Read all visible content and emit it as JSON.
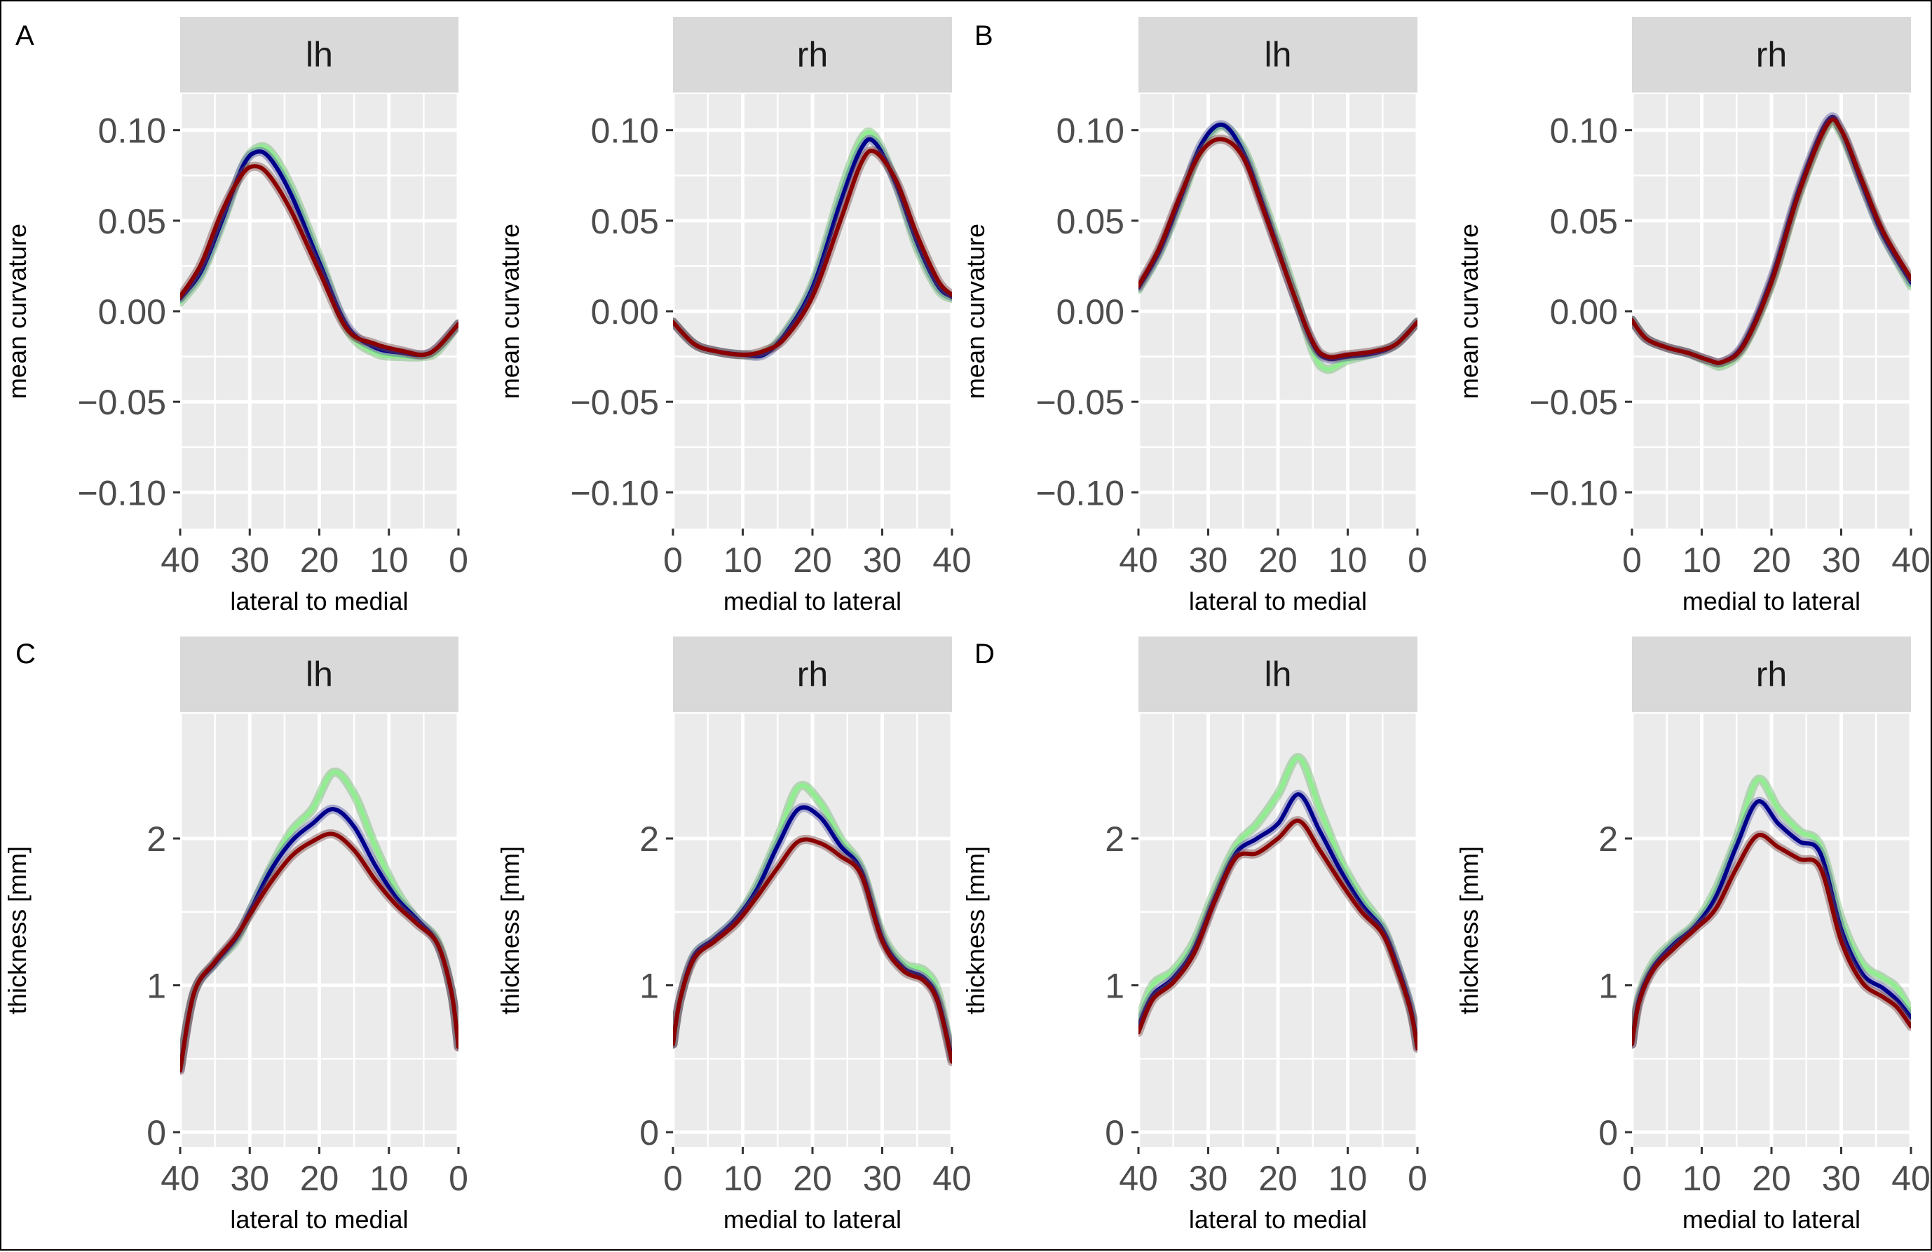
{
  "figure": {
    "panel_letters": [
      "A",
      "B",
      "C",
      "D"
    ]
  },
  "colors": {
    "panel_bg": "#ebebeb",
    "strip_bg": "#d9d9d9",
    "grid": "#ffffff",
    "green": "#90ee90",
    "blue": "#00008b",
    "red": "#8b0000"
  },
  "chart_data": [
    {
      "panel": "A",
      "type": "line",
      "strip": "lh",
      "xlabel": "lateral to medial",
      "ylabel": "mean curvature",
      "xlim": [
        40,
        0
      ],
      "x_ticks": [
        40,
        30,
        20,
        10,
        0
      ],
      "x_tick_labels": [
        "40",
        "30",
        "20",
        "10",
        "0"
      ],
      "ylim": [
        -0.12,
        0.12
      ],
      "y_ticks": [
        -0.1,
        -0.05,
        0,
        0.05,
        0.1
      ],
      "y_tick_labels": [
        "−0.10",
        "−0.05",
        "0.00",
        "0.05",
        "0.10"
      ],
      "x": [
        40,
        37,
        34,
        31,
        29,
        27,
        24,
        20,
        16,
        12,
        8,
        5,
        3,
        0
      ],
      "series": [
        {
          "name": "green",
          "values": [
            0.005,
            0.02,
            0.048,
            0.08,
            0.09,
            0.088,
            0.068,
            0.03,
            -0.01,
            -0.023,
            -0.025,
            -0.025,
            -0.022,
            -0.007
          ]
        },
        {
          "name": "blue",
          "values": [
            0.007,
            0.022,
            0.05,
            0.08,
            0.088,
            0.084,
            0.064,
            0.027,
            -0.008,
            -0.02,
            -0.023,
            -0.024,
            -0.02,
            -0.007
          ]
        },
        {
          "name": "red",
          "values": [
            0.008,
            0.026,
            0.055,
            0.076,
            0.08,
            0.074,
            0.055,
            0.022,
            -0.01,
            -0.018,
            -0.022,
            -0.024,
            -0.02,
            -0.007
          ]
        }
      ]
    },
    {
      "panel": "A",
      "type": "line",
      "strip": "rh",
      "xlabel": "medial to lateral",
      "ylabel": "mean curvature",
      "xlim": [
        0,
        40
      ],
      "x_ticks": [
        0,
        10,
        20,
        30,
        40
      ],
      "x_tick_labels": [
        "0",
        "10",
        "20",
        "30",
        "40"
      ],
      "ylim": [
        -0.12,
        0.12
      ],
      "y_ticks": [
        -0.1,
        -0.05,
        0,
        0.05,
        0.1
      ],
      "y_tick_labels": [
        "−0.10",
        "−0.05",
        "0.00",
        "0.05",
        "0.10"
      ],
      "x": [
        0,
        3,
        6,
        10,
        13,
        16,
        20,
        24,
        27,
        29,
        32,
        35,
        38,
        40
      ],
      "series": [
        {
          "name": "green",
          "values": [
            -0.006,
            -0.018,
            -0.022,
            -0.024,
            -0.023,
            -0.012,
            0.015,
            0.065,
            0.095,
            0.096,
            0.07,
            0.035,
            0.012,
            0.007
          ]
        },
        {
          "name": "blue",
          "values": [
            -0.006,
            -0.018,
            -0.022,
            -0.024,
            -0.024,
            -0.013,
            0.013,
            0.06,
            0.09,
            0.093,
            0.07,
            0.038,
            0.014,
            0.008
          ]
        },
        {
          "name": "red",
          "values": [
            -0.006,
            -0.018,
            -0.022,
            -0.024,
            -0.022,
            -0.015,
            0.008,
            0.05,
            0.082,
            0.088,
            0.072,
            0.042,
            0.017,
            0.009
          ]
        }
      ]
    },
    {
      "panel": "B",
      "type": "line",
      "strip": "lh",
      "xlabel": "lateral to medial",
      "ylabel": "mean curvature",
      "xlim": [
        40,
        0
      ],
      "x_ticks": [
        40,
        30,
        20,
        10,
        0
      ],
      "x_tick_labels": [
        "40",
        "30",
        "20",
        "10",
        "0"
      ],
      "ylim": [
        -0.12,
        0.12
      ],
      "y_ticks": [
        -0.1,
        -0.05,
        0,
        0.05,
        0.1
      ],
      "y_tick_labels": [
        "−0.10",
        "−0.05",
        "0.00",
        "0.05",
        "0.10"
      ],
      "x": [
        40,
        37,
        34,
        31,
        28,
        25,
        22,
        18,
        15,
        13,
        10,
        6,
        3,
        0
      ],
      "series": [
        {
          "name": "green",
          "values": [
            0.012,
            0.032,
            0.06,
            0.09,
            0.102,
            0.09,
            0.06,
            0.015,
            -0.022,
            -0.032,
            -0.027,
            -0.023,
            -0.018,
            -0.006
          ]
        },
        {
          "name": "blue",
          "values": [
            0.013,
            0.033,
            0.062,
            0.092,
            0.103,
            0.088,
            0.057,
            0.012,
            -0.018,
            -0.026,
            -0.025,
            -0.023,
            -0.018,
            -0.006
          ]
        },
        {
          "name": "red",
          "values": [
            0.014,
            0.035,
            0.064,
            0.088,
            0.095,
            0.085,
            0.055,
            0.012,
            -0.017,
            -0.025,
            -0.024,
            -0.022,
            -0.018,
            -0.006
          ]
        }
      ]
    },
    {
      "panel": "B",
      "type": "line",
      "strip": "rh",
      "xlabel": "medial to lateral",
      "ylabel": "mean curvature",
      "xlim": [
        0,
        40
      ],
      "x_ticks": [
        0,
        10,
        20,
        30,
        40
      ],
      "x_tick_labels": [
        "0",
        "10",
        "20",
        "30",
        "40"
      ],
      "ylim": [
        -0.12,
        0.12
      ],
      "y_ticks": [
        -0.1,
        -0.05,
        0,
        0.05,
        0.1
      ],
      "y_tick_labels": [
        "−0.10",
        "−0.05",
        "0.00",
        "0.05",
        "0.10"
      ],
      "x": [
        0,
        2,
        5,
        8,
        11,
        13,
        16,
        20,
        24,
        28,
        30,
        33,
        36,
        40
      ],
      "series": [
        {
          "name": "green",
          "values": [
            -0.005,
            -0.015,
            -0.02,
            -0.023,
            -0.028,
            -0.03,
            -0.02,
            0.015,
            0.065,
            0.102,
            0.098,
            0.07,
            0.042,
            0.014
          ]
        },
        {
          "name": "blue",
          "values": [
            -0.005,
            -0.015,
            -0.02,
            -0.023,
            -0.027,
            -0.028,
            -0.018,
            0.018,
            0.068,
            0.105,
            0.1,
            0.07,
            0.042,
            0.016
          ]
        },
        {
          "name": "red",
          "values": [
            -0.005,
            -0.015,
            -0.02,
            -0.023,
            -0.027,
            -0.028,
            -0.019,
            0.016,
            0.066,
            0.103,
            0.1,
            0.072,
            0.044,
            0.018
          ]
        }
      ]
    },
    {
      "panel": "C",
      "type": "line",
      "strip": "lh",
      "xlabel": "lateral to medial",
      "ylabel": "thickness [mm]",
      "xlim": [
        40,
        0
      ],
      "x_ticks": [
        40,
        30,
        20,
        10,
        0
      ],
      "x_tick_labels": [
        "40",
        "30",
        "20",
        "10",
        "0"
      ],
      "ylim": [
        -0.1,
        2.85
      ],
      "y_ticks": [
        0,
        1,
        2
      ],
      "y_tick_labels": [
        "0",
        "1",
        "2"
      ],
      "x": [
        40,
        38,
        35,
        32,
        30,
        27,
        24,
        21,
        18,
        15,
        12,
        9,
        6,
        3,
        1,
        0
      ],
      "series": [
        {
          "name": "green",
          "values": [
            0.45,
            0.95,
            1.15,
            1.3,
            1.5,
            1.8,
            2.05,
            2.2,
            2.45,
            2.3,
            1.95,
            1.65,
            1.45,
            1.3,
            0.95,
            0.6
          ]
        },
        {
          "name": "blue",
          "values": [
            0.43,
            0.95,
            1.15,
            1.32,
            1.5,
            1.78,
            1.98,
            2.1,
            2.2,
            2.08,
            1.82,
            1.6,
            1.45,
            1.28,
            0.95,
            0.58
          ]
        },
        {
          "name": "red",
          "values": [
            0.42,
            0.95,
            1.16,
            1.33,
            1.48,
            1.7,
            1.88,
            1.98,
            2.03,
            1.92,
            1.72,
            1.55,
            1.42,
            1.28,
            0.95,
            0.58
          ]
        }
      ]
    },
    {
      "panel": "C",
      "type": "line",
      "strip": "rh",
      "xlabel": "medial to lateral",
      "ylabel": "thickness [mm]",
      "xlim": [
        0,
        40
      ],
      "x_ticks": [
        0,
        10,
        20,
        30,
        40
      ],
      "x_tick_labels": [
        "0",
        "10",
        "20",
        "30",
        "40"
      ],
      "ylim": [
        -0.1,
        2.85
      ],
      "y_ticks": [
        0,
        1,
        2
      ],
      "y_tick_labels": [
        "0",
        "1",
        "2"
      ],
      "x": [
        0,
        1,
        3,
        6,
        9,
        12,
        15,
        18,
        21,
        24,
        27,
        30,
        33,
        36,
        38,
        40
      ],
      "series": [
        {
          "name": "green",
          "values": [
            0.6,
            0.9,
            1.2,
            1.32,
            1.45,
            1.68,
            2.0,
            2.35,
            2.25,
            2.0,
            1.8,
            1.35,
            1.15,
            1.1,
            0.95,
            0.5
          ]
        },
        {
          "name": "blue",
          "values": [
            0.6,
            0.9,
            1.2,
            1.32,
            1.45,
            1.65,
            1.95,
            2.2,
            2.15,
            1.95,
            1.78,
            1.32,
            1.12,
            1.05,
            0.9,
            0.5
          ]
        },
        {
          "name": "red",
          "values": [
            0.6,
            0.9,
            1.18,
            1.3,
            1.42,
            1.6,
            1.8,
            1.98,
            1.97,
            1.88,
            1.75,
            1.3,
            1.1,
            1.03,
            0.88,
            0.48
          ]
        }
      ]
    },
    {
      "panel": "D",
      "type": "line",
      "strip": "lh",
      "xlabel": "lateral to medial",
      "ylabel": "thickness [mm]",
      "xlim": [
        40,
        0
      ],
      "x_ticks": [
        40,
        30,
        20,
        10,
        0
      ],
      "x_tick_labels": [
        "40",
        "30",
        "20",
        "10",
        "0"
      ],
      "ylim": [
        -0.1,
        2.85
      ],
      "y_ticks": [
        0,
        1,
        2
      ],
      "y_tick_labels": [
        "0",
        "1",
        "2"
      ],
      "x": [
        40,
        38,
        35,
        32,
        29,
        26,
        23,
        20,
        17,
        14,
        11,
        8,
        5,
        3,
        1,
        0
      ],
      "series": [
        {
          "name": "green",
          "values": [
            0.75,
            1.0,
            1.1,
            1.3,
            1.65,
            1.95,
            2.1,
            2.3,
            2.55,
            2.2,
            1.85,
            1.6,
            1.4,
            1.15,
            0.85,
            0.6
          ]
        },
        {
          "name": "blue",
          "values": [
            0.72,
            0.93,
            1.05,
            1.25,
            1.6,
            1.9,
            2.0,
            2.1,
            2.3,
            2.05,
            1.78,
            1.55,
            1.38,
            1.15,
            0.85,
            0.58
          ]
        },
        {
          "name": "red",
          "values": [
            0.68,
            0.9,
            1.02,
            1.22,
            1.58,
            1.87,
            1.9,
            2.0,
            2.12,
            1.92,
            1.7,
            1.5,
            1.35,
            1.12,
            0.83,
            0.57
          ]
        }
      ]
    },
    {
      "panel": "D",
      "type": "line",
      "strip": "rh",
      "xlabel": "medial to lateral",
      "ylabel": "thickness [mm]",
      "xlim": [
        0,
        40
      ],
      "x_ticks": [
        0,
        10,
        20,
        30,
        40
      ],
      "x_tick_labels": [
        "0",
        "10",
        "20",
        "30",
        "40"
      ],
      "ylim": [
        -0.1,
        2.85
      ],
      "y_ticks": [
        0,
        1,
        2
      ],
      "y_tick_labels": [
        "0",
        "1",
        "2"
      ],
      "x": [
        0,
        1,
        3,
        6,
        9,
        12,
        15,
        18,
        21,
        24,
        27,
        30,
        33,
        36,
        38,
        40
      ],
      "series": [
        {
          "name": "green",
          "values": [
            0.62,
            0.92,
            1.15,
            1.3,
            1.42,
            1.65,
            2.0,
            2.4,
            2.2,
            2.05,
            1.95,
            1.45,
            1.15,
            1.05,
            0.98,
            0.82
          ]
        },
        {
          "name": "blue",
          "values": [
            0.6,
            0.9,
            1.12,
            1.28,
            1.4,
            1.6,
            1.95,
            2.25,
            2.1,
            1.98,
            1.9,
            1.38,
            1.08,
            0.98,
            0.9,
            0.78
          ]
        },
        {
          "name": "red",
          "values": [
            0.6,
            0.88,
            1.1,
            1.25,
            1.38,
            1.52,
            1.8,
            2.02,
            1.94,
            1.86,
            1.8,
            1.3,
            1.02,
            0.92,
            0.85,
            0.72
          ]
        }
      ]
    }
  ]
}
